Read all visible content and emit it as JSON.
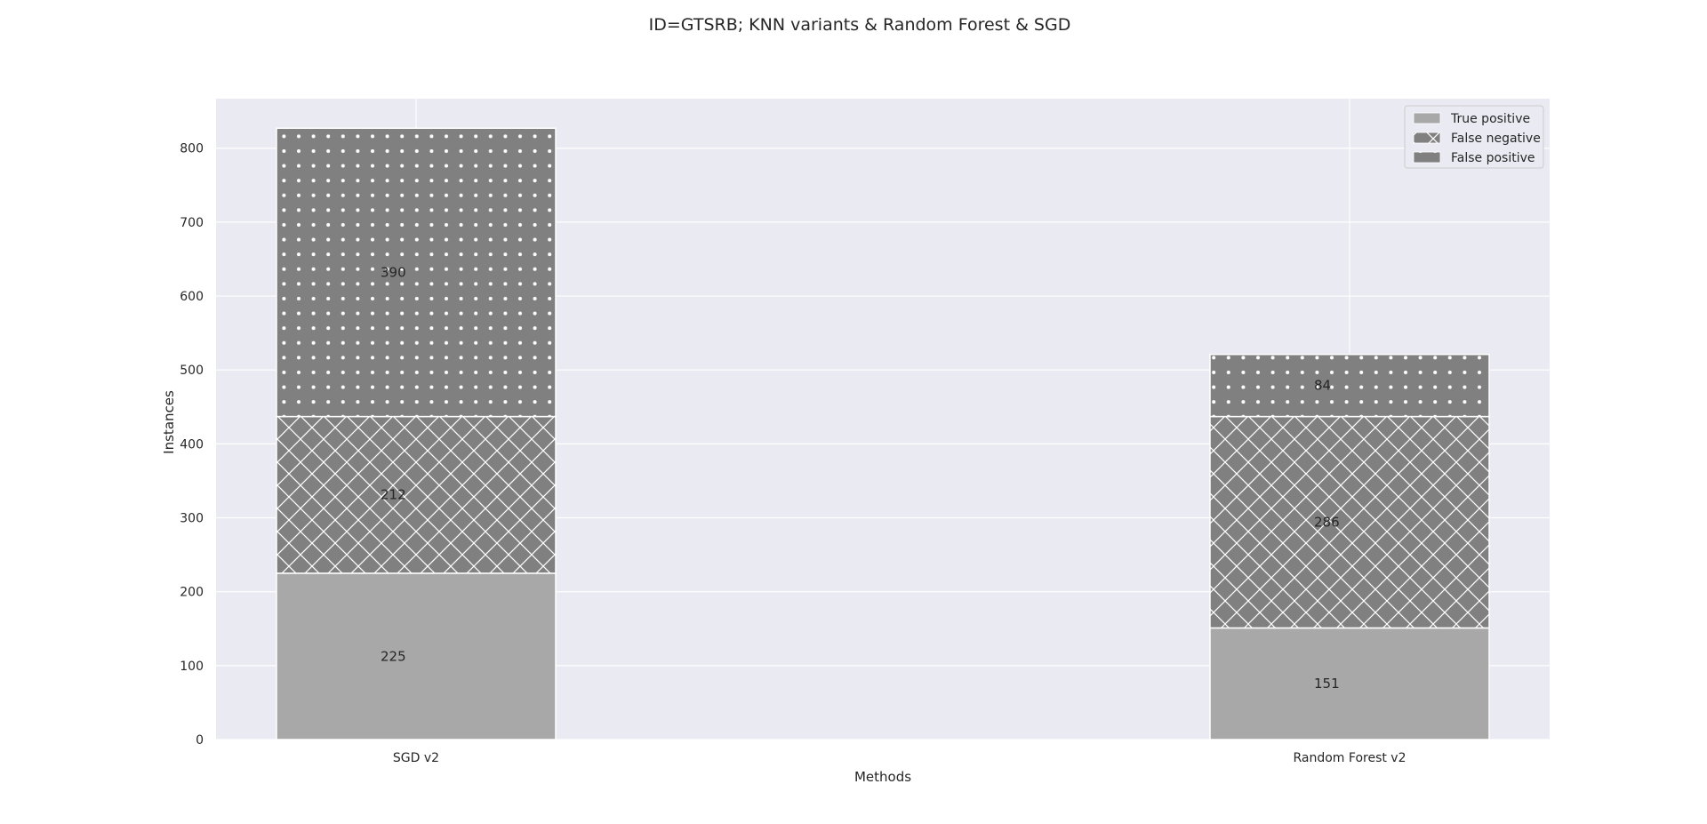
{
  "chart_data": {
    "type": "bar",
    "stacked": true,
    "title": "ID=GTSRB; KNN variants & Random Forest & SGD",
    "xlabel": "Methods",
    "ylabel": "Instances",
    "categories": [
      "SGD v2",
      "Random Forest v2"
    ],
    "series": [
      {
        "name": "True positive",
        "values": [
          225,
          151
        ],
        "color": "#a8a8a8",
        "pattern": "solid"
      },
      {
        "name": "False negative",
        "values": [
          212,
          286
        ],
        "color": "#808080",
        "pattern": "crosshatch"
      },
      {
        "name": "False positive",
        "values": [
          390,
          84
        ],
        "color": "#808080",
        "pattern": "dots"
      }
    ],
    "ylim": [
      0,
      867
    ],
    "yticks": [
      0,
      100,
      200,
      300,
      400,
      500,
      600,
      700,
      800
    ],
    "grid": true,
    "legend_position": "top-right",
    "background": "#eaeaf2",
    "gridline_color": "#ffffff"
  }
}
